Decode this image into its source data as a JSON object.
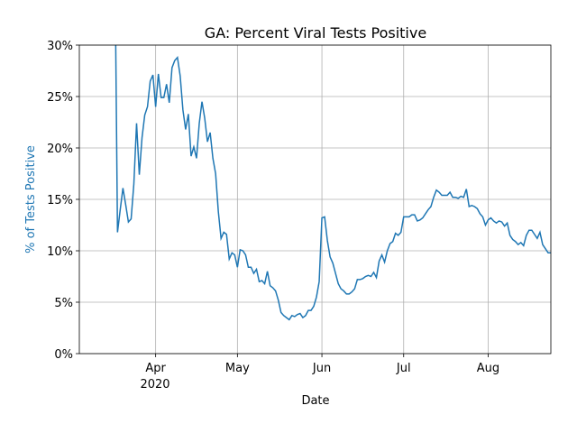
{
  "chart_data": {
    "type": "line",
    "title": "GA: Percent Viral Tests Positive",
    "x_label": "Date",
    "y_label": "% of Tests Positive",
    "x_secondary_label": "2020",
    "color": "#1f77b4",
    "grid": true,
    "x": [
      "2020-03-17",
      "2020-03-18",
      "2020-03-19",
      "2020-03-20",
      "2020-03-21",
      "2020-03-22",
      "2020-03-23",
      "2020-03-24",
      "2020-03-25",
      "2020-03-26",
      "2020-03-27",
      "2020-03-28",
      "2020-03-29",
      "2020-03-30",
      "2020-03-31",
      "2020-04-01",
      "2020-04-02",
      "2020-04-03",
      "2020-04-04",
      "2020-04-05",
      "2020-04-06",
      "2020-04-07",
      "2020-04-08",
      "2020-04-09",
      "2020-04-10",
      "2020-04-11",
      "2020-04-12",
      "2020-04-13",
      "2020-04-14",
      "2020-04-15",
      "2020-04-16",
      "2020-04-17",
      "2020-04-18",
      "2020-04-19",
      "2020-04-20",
      "2020-04-21",
      "2020-04-22",
      "2020-04-23",
      "2020-04-24",
      "2020-04-25",
      "2020-04-26",
      "2020-04-27",
      "2020-04-28",
      "2020-04-29",
      "2020-04-30",
      "2020-05-01",
      "2020-05-02",
      "2020-05-03",
      "2020-05-04",
      "2020-05-05",
      "2020-05-06",
      "2020-05-07",
      "2020-05-08",
      "2020-05-09",
      "2020-05-10",
      "2020-05-11",
      "2020-05-12",
      "2020-05-13",
      "2020-05-14",
      "2020-05-15",
      "2020-05-16",
      "2020-05-17",
      "2020-05-18",
      "2020-05-19",
      "2020-05-20",
      "2020-05-21",
      "2020-05-22",
      "2020-05-23",
      "2020-05-24",
      "2020-05-25",
      "2020-05-26",
      "2020-05-27",
      "2020-05-28",
      "2020-05-29",
      "2020-05-30",
      "2020-05-31",
      "2020-06-01",
      "2020-06-02",
      "2020-06-03",
      "2020-06-04",
      "2020-06-05",
      "2020-06-06",
      "2020-06-07",
      "2020-06-08",
      "2020-06-09",
      "2020-06-10",
      "2020-06-11",
      "2020-06-12",
      "2020-06-13",
      "2020-06-14",
      "2020-06-15",
      "2020-06-16",
      "2020-06-17",
      "2020-06-18",
      "2020-06-19",
      "2020-06-20",
      "2020-06-21",
      "2020-06-22",
      "2020-06-23",
      "2020-06-24",
      "2020-06-25",
      "2020-06-26",
      "2020-06-27",
      "2020-06-28",
      "2020-06-29",
      "2020-06-30",
      "2020-07-01",
      "2020-07-02",
      "2020-07-03",
      "2020-07-04",
      "2020-07-05",
      "2020-07-06",
      "2020-07-07",
      "2020-07-08",
      "2020-07-09",
      "2020-07-10",
      "2020-07-11",
      "2020-07-12",
      "2020-07-13",
      "2020-07-14",
      "2020-07-15",
      "2020-07-16",
      "2020-07-17",
      "2020-07-18",
      "2020-07-19",
      "2020-07-20",
      "2020-07-21",
      "2020-07-22",
      "2020-07-23",
      "2020-07-24",
      "2020-07-25",
      "2020-07-26",
      "2020-07-27",
      "2020-07-28",
      "2020-07-29",
      "2020-07-30",
      "2020-07-31",
      "2020-08-01",
      "2020-08-02",
      "2020-08-03",
      "2020-08-04",
      "2020-08-05",
      "2020-08-06",
      "2020-08-07",
      "2020-08-08",
      "2020-08-09",
      "2020-08-10",
      "2020-08-11",
      "2020-08-12",
      "2020-08-13",
      "2020-08-14",
      "2020-08-15",
      "2020-08-16",
      "2020-08-17",
      "2020-08-18",
      "2020-08-19",
      "2020-08-20",
      "2020-08-21",
      "2020-08-22",
      "2020-08-23",
      "2020-08-24"
    ],
    "values": [
      40,
      11.8,
      14,
      16.1,
      14.5,
      12.8,
      13.1,
      16.5,
      22.4,
      17.4,
      21,
      23.2,
      24,
      26.5,
      27.1,
      24,
      27.2,
      24.9,
      24.9,
      26.2,
      24.4,
      27.8,
      28.5,
      28.8,
      27,
      23.7,
      21.8,
      23.3,
      19.2,
      20.1,
      19,
      22.4,
      24.5,
      22.9,
      20.6,
      21.5,
      19,
      17.5,
      13.8,
      11.2,
      11.8,
      11.6,
      9.2,
      9.8,
      9.6,
      8.4,
      10.1,
      10,
      9.6,
      8.4,
      8.4,
      7.8,
      8.2,
      7,
      7.1,
      6.8,
      8,
      6.6,
      6.4,
      6.1,
      5.2,
      4,
      3.7,
      3.5,
      3.3,
      3.7,
      3.6,
      3.8,
      3.9,
      3.5,
      3.7,
      4.2,
      4.2,
      4.6,
      5.5,
      7,
      13.2,
      13.3,
      11,
      9.4,
      8.8,
      7.8,
      6.8,
      6.3,
      6.1,
      5.8,
      5.8,
      6,
      6.3,
      7.2,
      7.2,
      7.3,
      7.5,
      7.6,
      7.5,
      7.9,
      7.4,
      9,
      9.6,
      8.9,
      10,
      10.7,
      10.9,
      11.7,
      11.5,
      11.8,
      13.3,
      13.3,
      13.3,
      13.5,
      13.5,
      12.9,
      13,
      13.2,
      13.6,
      14,
      14.3,
      15.2,
      15.9,
      15.7,
      15.4,
      15.4,
      15.4,
      15.7,
      15.2,
      15.2,
      15.1,
      15.3,
      15.2,
      16,
      14.3,
      14.4,
      14.3,
      14.1,
      13.6,
      13.3,
      12.5,
      13,
      13.2,
      12.9,
      12.7,
      12.9,
      12.8,
      12.4,
      12.7,
      11.5,
      11.1,
      10.9,
      10.6,
      10.8,
      10.5,
      11.5,
      12,
      12,
      11.6,
      11.2,
      11.8,
      10.6,
      10.2,
      9.8,
      9.8
    ],
    "xlim": [
      "2020-03-04",
      "2020-08-24"
    ],
    "xticks": [
      {
        "value": "2020-04-01",
        "label": "Apr"
      },
      {
        "value": "2020-05-01",
        "label": "May"
      },
      {
        "value": "2020-06-01",
        "label": "Jun"
      },
      {
        "value": "2020-07-01",
        "label": "Jul"
      },
      {
        "value": "2020-08-01",
        "label": "Aug"
      }
    ],
    "ylim": [
      0,
      30
    ],
    "yticks": [
      {
        "value": 0,
        "label": "0%"
      },
      {
        "value": 5,
        "label": "5%"
      },
      {
        "value": 10,
        "label": "10%"
      },
      {
        "value": 15,
        "label": "15%"
      },
      {
        "value": 20,
        "label": "20%"
      },
      {
        "value": 25,
        "label": "25%"
      },
      {
        "value": 30,
        "label": "30%"
      }
    ]
  }
}
